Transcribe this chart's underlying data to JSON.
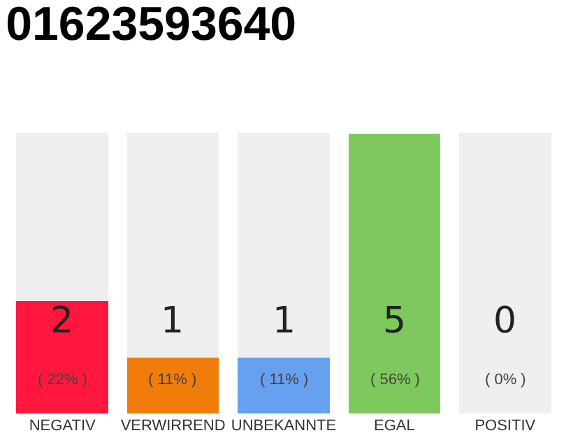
{
  "chart_data": {
    "type": "bar",
    "title": "01623593640",
    "stacked": true,
    "categories": [
      "NEGATIV",
      "VERWIRREND",
      "UNBEKANNTE",
      "EGAL",
      "POSITIV"
    ],
    "series": [
      {
        "values": [
          2,
          1,
          1,
          5,
          0
        ],
        "colors": [
          "#ff173d",
          "#f07d0a",
          "#66a0ee",
          "#7dc95e",
          "#2ea84a"
        ],
        "value_labels": [
          "2\n( 22% )",
          "1\n( 11% )",
          "1\n( 11% )",
          "5\n( 56% )",
          "0\n( 0% )"
        ]
      },
      {
        "values": [
          3,
          4,
          4,
          0,
          5
        ],
        "color": "#efefef"
      }
    ],
    "ylim": [
      0,
      5
    ],
    "tick_labels": "x",
    "grid": false
  }
}
